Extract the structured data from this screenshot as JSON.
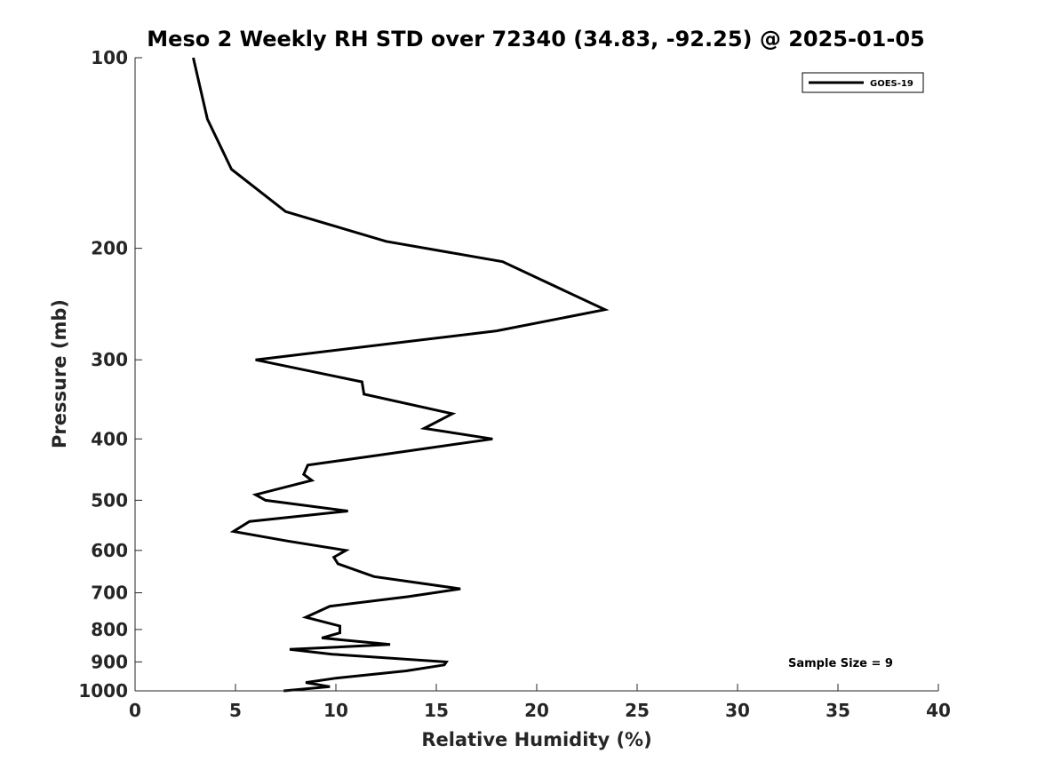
{
  "chart_data": {
    "type": "line",
    "title": "Meso 2 Weekly RH STD over 72340 (34.83, -92.25) @ 2025-01-05",
    "xlabel": "Relative Humidity (%)",
    "ylabel": "Pressure (mb)",
    "xlim": [
      0,
      40
    ],
    "ylim": [
      1000,
      100
    ],
    "yscale": "log",
    "xticks": [
      0,
      5,
      10,
      15,
      20,
      25,
      30,
      35,
      40
    ],
    "yticks": [
      100,
      200,
      300,
      400,
      500,
      600,
      700,
      800,
      900,
      1000
    ],
    "grid": false,
    "legend": {
      "location": "top-right"
    },
    "annotations": [
      {
        "text": "Sample Size = 9",
        "location": "bottom-right"
      }
    ],
    "series": [
      {
        "name": "GOES-19",
        "color": "#000000",
        "points": [
          [
            2.9,
            100
          ],
          [
            3.6,
            125
          ],
          [
            4.8,
            150
          ],
          [
            7.5,
            175
          ],
          [
            12.5,
            195
          ],
          [
            18.3,
            210
          ],
          [
            23.4,
            250
          ],
          [
            18.0,
            270
          ],
          [
            6.0,
            300
          ],
          [
            11.3,
            325
          ],
          [
            11.4,
            340
          ],
          [
            15.8,
            365
          ],
          [
            14.4,
            385
          ],
          [
            17.8,
            400
          ],
          [
            12.0,
            425
          ],
          [
            8.6,
            440
          ],
          [
            8.4,
            455
          ],
          [
            8.8,
            465
          ],
          [
            6.0,
            490
          ],
          [
            6.5,
            500
          ],
          [
            10.6,
            520
          ],
          [
            5.7,
            540
          ],
          [
            4.9,
            560
          ],
          [
            7.6,
            580
          ],
          [
            10.5,
            600
          ],
          [
            9.9,
            615
          ],
          [
            10.1,
            630
          ],
          [
            11.9,
            660
          ],
          [
            16.2,
            690
          ],
          [
            13.6,
            710
          ],
          [
            9.7,
            735
          ],
          [
            8.5,
            765
          ],
          [
            10.2,
            790
          ],
          [
            10.2,
            810
          ],
          [
            9.3,
            825
          ],
          [
            12.7,
            845
          ],
          [
            7.7,
            860
          ],
          [
            9.8,
            875
          ],
          [
            15.5,
            900
          ],
          [
            15.4,
            910
          ],
          [
            13.5,
            930
          ],
          [
            10.0,
            955
          ],
          [
            8.5,
            970
          ],
          [
            9.7,
            985
          ],
          [
            7.4,
            1000
          ]
        ]
      }
    ]
  }
}
